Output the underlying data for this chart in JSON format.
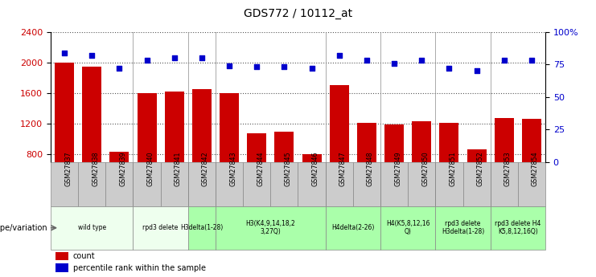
{
  "title": "GDS772 / 10112_at",
  "samples": [
    "GSM27837",
    "GSM27838",
    "GSM27839",
    "GSM27840",
    "GSM27841",
    "GSM27842",
    "GSM27843",
    "GSM27844",
    "GSM27845",
    "GSM27846",
    "GSM27847",
    "GSM27848",
    "GSM27849",
    "GSM27850",
    "GSM27851",
    "GSM27852",
    "GSM27853",
    "GSM27854"
  ],
  "counts": [
    2000,
    1950,
    830,
    1600,
    1620,
    1650,
    1600,
    1080,
    1100,
    800,
    1700,
    1210,
    1195,
    1230,
    1210,
    870,
    1280,
    1260
  ],
  "percentiles": [
    84,
    82,
    72,
    78,
    80,
    80,
    74,
    73,
    73,
    72,
    82,
    78,
    76,
    78,
    72,
    70,
    78,
    78
  ],
  "ylim_left": [
    700,
    2400
  ],
  "ylim_right": [
    0,
    100
  ],
  "yticks_left": [
    800,
    1200,
    1600,
    2000,
    2400
  ],
  "yticks_right": [
    0,
    25,
    50,
    75,
    100
  ],
  "bar_color": "#cc0000",
  "dot_color": "#0000cc",
  "groups": [
    {
      "label": "wild type",
      "start": 0,
      "end": 3,
      "color": "#eeffee"
    },
    {
      "label": "rpd3 delete",
      "start": 3,
      "end": 5,
      "color": "#eeffee"
    },
    {
      "label": "H3delta(1-28)",
      "start": 5,
      "end": 6,
      "color": "#aaffaa"
    },
    {
      "label": "H3(K4,9,14,18,2\n3,27Q)",
      "start": 6,
      "end": 10,
      "color": "#aaffaa"
    },
    {
      "label": "H4delta(2-26)",
      "start": 10,
      "end": 12,
      "color": "#aaffaa"
    },
    {
      "label": "H4(K5,8,12,16\nQ)",
      "start": 12,
      "end": 14,
      "color": "#aaffaa"
    },
    {
      "label": "rpd3 delete\nH3delta(1-28)",
      "start": 14,
      "end": 16,
      "color": "#aaffaa"
    },
    {
      "label": "rpd3 delete H4\nK5,8,12,16Q)",
      "start": 16,
      "end": 18,
      "color": "#aaffaa"
    }
  ],
  "genotype_label": "genotype/variation",
  "legend_count": "count",
  "legend_percentile": "percentile rank within the sample",
  "bg_color": "#ffffff",
  "plot_bg": "#ffffff",
  "grid_color": "#555555",
  "tick_label_bg": "#cccccc",
  "ylabel_left_color": "#cc0000",
  "ylabel_right_color": "#0000cc"
}
